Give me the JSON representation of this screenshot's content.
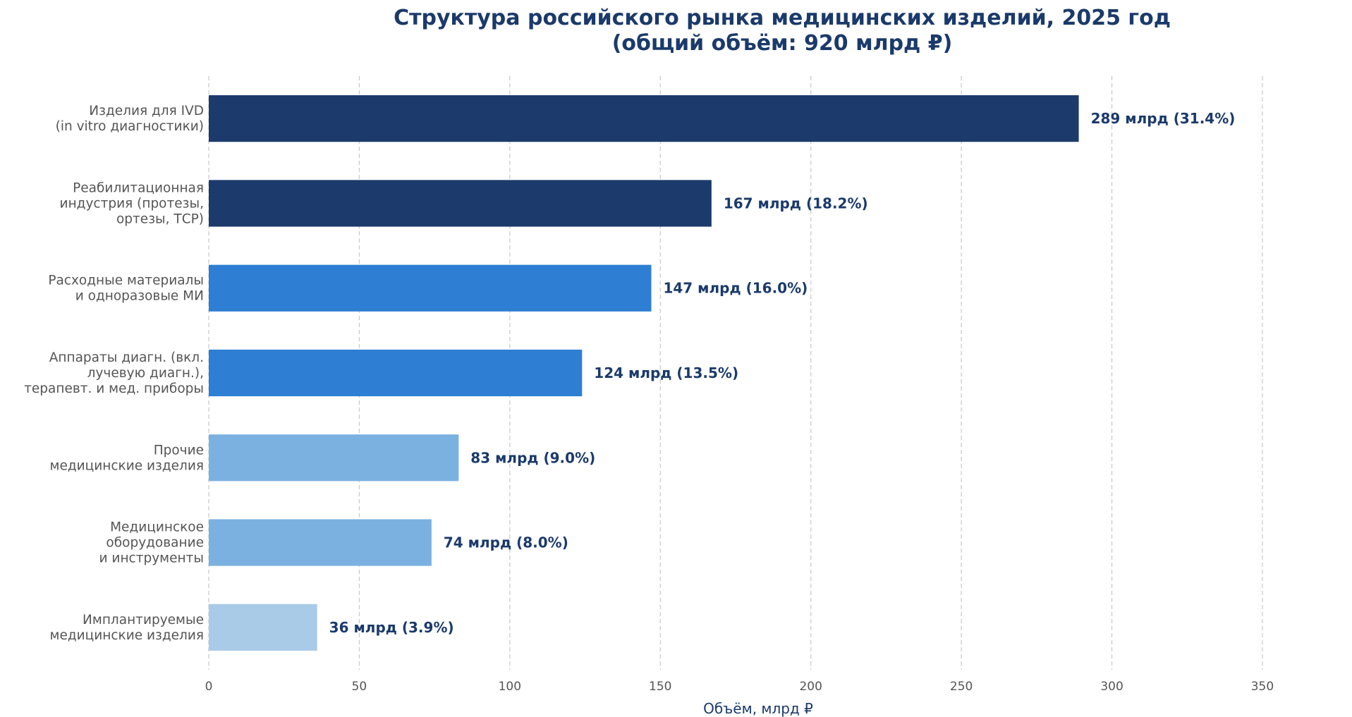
{
  "chart_data": {
    "type": "bar",
    "orientation": "horizontal",
    "title_line1": "Структура российского рынка медицинских изделий, 2025 год",
    "title_line2": "(общий объём: 920 млрд ₽)",
    "xlabel": "Объём, млрд ₽",
    "ylabel": "",
    "xlim": [
      0,
      365
    ],
    "xticks": [
      "0",
      "50",
      "100",
      "150",
      "200",
      "250",
      "300",
      "350"
    ],
    "grid": "vertical dashed",
    "categories": [
      [
        "Изделия для IVD",
        "(in vitro диагностики)"
      ],
      [
        "Реабилитационная",
        "индустрия (протезы,",
        "ортезы, ТСР)"
      ],
      [
        "Расходные материалы",
        "и одноразовые МИ"
      ],
      [
        "Аппараты диагн. (вкл.",
        "лучевую диагн.),",
        "терапевт. и мед. приборы"
      ],
      [
        "Прочие",
        "медицинские изделия"
      ],
      [
        "Медицинское",
        "оборудование",
        "и инструменты"
      ],
      [
        "Имплантируемые",
        "медицинские изделия"
      ]
    ],
    "values": [
      289,
      167,
      147,
      124,
      83,
      74,
      36
    ],
    "value_labels": [
      "289 млрд (31.4%)",
      "167 млрд (18.2%)",
      "147 млрд (16.0%)",
      "124 млрд (13.5%)",
      "83 млрд (9.0%)",
      "74 млрд (8.0%)",
      "36 млрд (3.9%)"
    ],
    "bar_colors": [
      "#1c3a6b",
      "#1c3a6b",
      "#2e7ed3",
      "#2e7ed3",
      "#7bb1e0",
      "#7bb1e0",
      "#a9cbe8"
    ],
    "label_color": "#1b3a6b",
    "tick_label_color": "#555555"
  }
}
